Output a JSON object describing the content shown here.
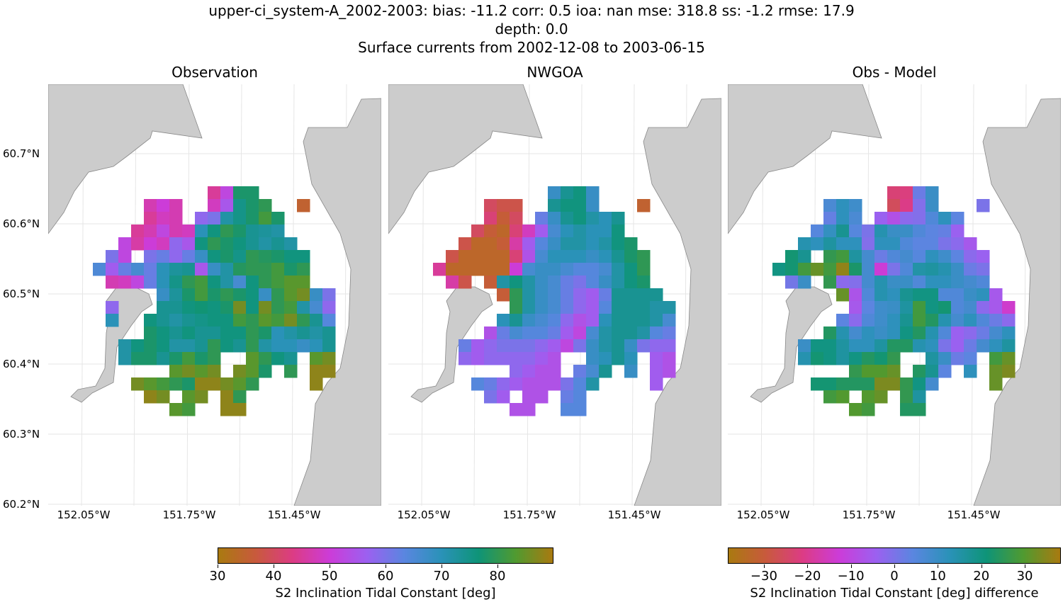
{
  "title": {
    "line1": "upper-ci_system-A_2002-2003: bias: -11.2  corr: 0.5  ioa: nan  mse: 318.8  ss: -1.2  rmse: 17.9",
    "line2": "depth: 0.0",
    "line3": "Surface currents from 2002-12-08 to 2003-06-15"
  },
  "panels": [
    {
      "title": "Observation"
    },
    {
      "title": "NWGOA"
    },
    {
      "title": "Obs - Model"
    }
  ],
  "lat_ticks": [
    "60.7°N",
    "60.6°N",
    "60.5°N",
    "60.4°N",
    "60.3°N",
    "60.2°N"
  ],
  "lon_ticks": [
    "152.05°W",
    "151.75°W",
    "151.45°W"
  ],
  "colorbars": [
    {
      "label": "S2 Inclination Tidal Constant [deg]",
      "range": [
        30,
        90
      ],
      "ticks": [
        "30",
        "40",
        "50",
        "60",
        "70",
        "80"
      ],
      "tick_values": [
        30,
        40,
        50,
        60,
        70,
        80
      ]
    },
    {
      "label": "S2 Inclination Tidal Constant [deg] difference",
      "range": [
        -38.3,
        38.3
      ],
      "ticks": [
        "−30",
        "−20",
        "−10",
        "0",
        "10",
        "20",
        "30"
      ],
      "tick_values": [
        -30,
        -20,
        -10,
        0,
        10,
        20,
        30
      ]
    }
  ],
  "colors": {
    "land": "#cccccc",
    "coast": "#888888",
    "grid": "#e6e6e6",
    "colormap": [
      "#a97a10",
      "#c85a3c",
      "#dc3c84",
      "#cc3cd8",
      "#9c60f0",
      "#5a86e0",
      "#2a92b8",
      "#0e9478",
      "#509a30",
      "#a97a10"
    ]
  },
  "chart_data": {
    "type": "heatmap",
    "units": "deg",
    "observation": [
      [
        null,
        null,
        null,
        null,
        null,
        null,
        null,
        null,
        null,
        45,
        52,
        78,
        78,
        null,
        null,
        null,
        null,
        null,
        null
      ],
      [
        null,
        null,
        null,
        null,
        47,
        50,
        47,
        null,
        null,
        48,
        55,
        75,
        78,
        80,
        null,
        null,
        35,
        null,
        null
      ],
      [
        null,
        null,
        null,
        null,
        45,
        48,
        47,
        null,
        58,
        60,
        72,
        75,
        78,
        82,
        78,
        null,
        null,
        null,
        null
      ],
      [
        null,
        null,
        null,
        45,
        47,
        52,
        47,
        48,
        70,
        76,
        80,
        78,
        74,
        73,
        72,
        null,
        null,
        null,
        null
      ],
      [
        null,
        null,
        52,
        46,
        50,
        48,
        58,
        55,
        76,
        80,
        78,
        76,
        74,
        72,
        74,
        72,
        null,
        null,
        null
      ],
      [
        null,
        60,
        52,
        null,
        60,
        62,
        58,
        62,
        68,
        76,
        78,
        75,
        80,
        79,
        78,
        76,
        76,
        null,
        null
      ],
      [
        65,
        56,
        62,
        66,
        62,
        70,
        73,
        74,
        55,
        68,
        72,
        79,
        80,
        80,
        82,
        78,
        80,
        null,
        null
      ],
      [
        null,
        47,
        48,
        52,
        62,
        70,
        75,
        80,
        82,
        76,
        72,
        66,
        76,
        80,
        82,
        84,
        84,
        null,
        null
      ],
      [
        null,
        null,
        null,
        null,
        null,
        68,
        73,
        78,
        82,
        78,
        80,
        78,
        76,
        68,
        80,
        84,
        86,
        68,
        60
      ],
      [
        null,
        58,
        null,
        null,
        null,
        74,
        74,
        76,
        77,
        76,
        78,
        86,
        76,
        86,
        80,
        82,
        72,
        66,
        58
      ],
      [
        null,
        70,
        null,
        null,
        76,
        74,
        72,
        74,
        75,
        76,
        76,
        82,
        80,
        84,
        82,
        86,
        80,
        74,
        64
      ],
      [
        null,
        null,
        null,
        null,
        78,
        76,
        74,
        76,
        74,
        74,
        76,
        76,
        80,
        78,
        70,
        72,
        74,
        72,
        74
      ],
      [
        null,
        null,
        72,
        76,
        78,
        76,
        72,
        72,
        74,
        80,
        76,
        74,
        80,
        72,
        70,
        70,
        68,
        70,
        74
      ],
      [
        null,
        null,
        72,
        78,
        78,
        74,
        78,
        82,
        78,
        80,
        null,
        null,
        84,
        80,
        76,
        74,
        null,
        84,
        86
      ],
      [
        null,
        null,
        null,
        null,
        null,
        null,
        84,
        86,
        84,
        86,
        null,
        86,
        84,
        78,
        null,
        80,
        null,
        88,
        88
      ],
      [
        null,
        null,
        null,
        86,
        84,
        82,
        80,
        78,
        88,
        88,
        86,
        84,
        80,
        null,
        null,
        null,
        null,
        88,
        null
      ],
      [
        null,
        null,
        null,
        null,
        88,
        86,
        null,
        84,
        86,
        null,
        88,
        80,
        null,
        null,
        null,
        null,
        null,
        null,
        null
      ],
      [
        null,
        null,
        null,
        null,
        null,
        null,
        84,
        82,
        null,
        null,
        88,
        88,
        null,
        null,
        null,
        null,
        null,
        null,
        null
      ]
    ],
    "model": [
      [
        null,
        null,
        null,
        null,
        null,
        null,
        null,
        null,
        null,
        68,
        74,
        76,
        68,
        null,
        null,
        null,
        null,
        null,
        null
      ],
      [
        null,
        null,
        null,
        null,
        40,
        38,
        38,
        null,
        null,
        74,
        76,
        76,
        68,
        null,
        null,
        null,
        35,
        null,
        null
      ],
      [
        null,
        null,
        null,
        null,
        42,
        36,
        40,
        null,
        62,
        68,
        74,
        76,
        72,
        70,
        74,
        null,
        null,
        null,
        null
      ],
      [
        null,
        null,
        null,
        40,
        36,
        34,
        42,
        48,
        56,
        66,
        70,
        72,
        70,
        70,
        76,
        null,
        null,
        null,
        null
      ],
      [
        null,
        null,
        38,
        34,
        34,
        36,
        46,
        56,
        64,
        68,
        72,
        72,
        70,
        72,
        76,
        78,
        null,
        null,
        null
      ],
      [
        null,
        38,
        34,
        34,
        34,
        34,
        42,
        54,
        66,
        70,
        70,
        70,
        68,
        70,
        74,
        78,
        80,
        null,
        null
      ],
      [
        45,
        34,
        34,
        34,
        34,
        34,
        50,
        66,
        68,
        68,
        66,
        64,
        64,
        66,
        72,
        76,
        80,
        null,
        null
      ],
      [
        null,
        46,
        38,
        null,
        36,
        72,
        76,
        72,
        68,
        66,
        62,
        60,
        64,
        68,
        72,
        76,
        78,
        null,
        null
      ],
      [
        null,
        null,
        null,
        null,
        null,
        36,
        80,
        72,
        68,
        66,
        62,
        58,
        56,
        62,
        74,
        74,
        74,
        74,
        null
      ],
      [
        null,
        null,
        null,
        null,
        null,
        null,
        80,
        72,
        68,
        66,
        62,
        58,
        56,
        64,
        74,
        74,
        74,
        72,
        72
      ],
      [
        null,
        null,
        null,
        null,
        null,
        70,
        74,
        68,
        66,
        64,
        58,
        54,
        56,
        70,
        74,
        74,
        74,
        72,
        66
      ],
      [
        null,
        null,
        null,
        null,
        54,
        62,
        66,
        64,
        64,
        62,
        56,
        52,
        66,
        72,
        74,
        74,
        72,
        64,
        62
      ],
      [
        null,
        null,
        62,
        56,
        58,
        60,
        60,
        60,
        58,
        56,
        52,
        60,
        68,
        72,
        74,
        68,
        60,
        58,
        58
      ],
      [
        null,
        null,
        58,
        56,
        58,
        58,
        58,
        58,
        56,
        54,
        null,
        null,
        68,
        70,
        74,
        70,
        null,
        56,
        54
      ],
      [
        null,
        null,
        null,
        null,
        null,
        null,
        58,
        56,
        54,
        54,
        null,
        62,
        66,
        74,
        null,
        68,
        null,
        56,
        54
      ],
      [
        null,
        null,
        null,
        64,
        62,
        58,
        56,
        54,
        54,
        54,
        60,
        64,
        72,
        null,
        null,
        null,
        null,
        56,
        null
      ],
      [
        null,
        null,
        null,
        null,
        60,
        56,
        null,
        54,
        54,
        null,
        62,
        64,
        null,
        null,
        null,
        null,
        null,
        null,
        null
      ],
      [
        null,
        null,
        null,
        null,
        null,
        null,
        54,
        54,
        null,
        null,
        64,
        64,
        null,
        null,
        null,
        null,
        null,
        null,
        null
      ]
    ]
  }
}
